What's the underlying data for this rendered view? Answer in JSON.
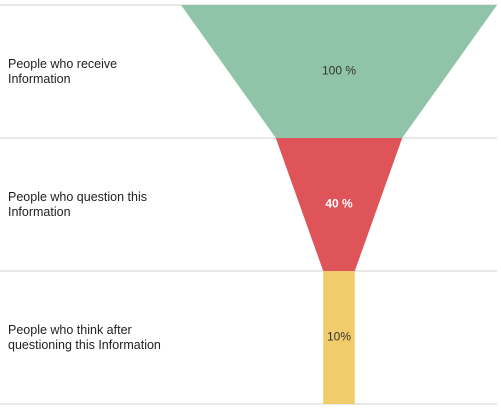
{
  "chart_data": {
    "type": "funnel",
    "categories": [
      "People who receive Information",
      "People who question this Information",
      "People who think after questioning this Information"
    ],
    "values": [
      100,
      40,
      10
    ],
    "value_labels": [
      "100 %",
      "40 %",
      "10%"
    ],
    "colors": [
      "#8fc4a8",
      "#de5459",
      "#f0cc6b"
    ]
  }
}
